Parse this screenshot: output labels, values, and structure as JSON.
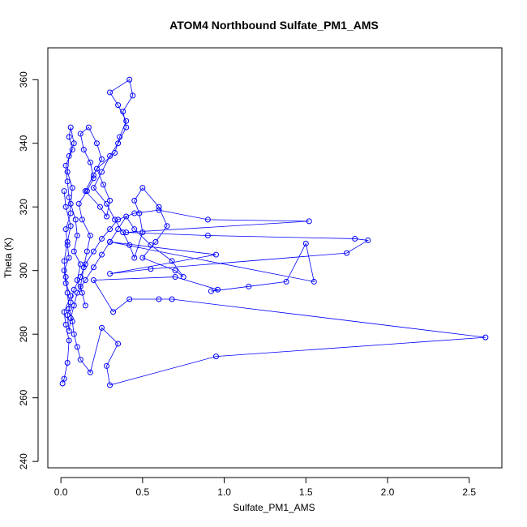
{
  "chart_data": {
    "type": "line",
    "title": "ATOM4 Northbound Sulfate_PM1_AMS",
    "xlabel": "Sulfate_PM1_AMS",
    "ylabel": "Theta (K)",
    "xlim": [
      -0.08,
      2.7
    ],
    "ylim": [
      238,
      370
    ],
    "xticks": [
      0.0,
      0.5,
      1.0,
      1.5,
      2.0,
      2.5
    ],
    "xtick_labels": [
      "0.0",
      "0.5",
      "1.0",
      "1.5",
      "2.0",
      "2.5"
    ],
    "yticks": [
      240,
      260,
      280,
      300,
      320,
      340,
      360
    ],
    "ytick_labels": [
      "240",
      "260",
      "280",
      "300",
      "320",
      "340",
      "360"
    ],
    "grid": false,
    "marker": "open-circle",
    "color": "#0000ff",
    "series": [
      {
        "x": [
          0.01,
          0.02,
          0.04,
          0.05,
          0.03,
          0.02,
          0.06,
          0.03,
          0.02,
          0.05,
          0.04,
          0.03,
          0.06,
          0.05,
          0.04,
          0.03,
          0.07,
          0.05,
          0.06,
          0.08,
          0.05,
          0.04,
          0.07,
          0.06,
          0.09,
          0.1,
          0.08,
          0.12,
          0.1,
          0.13,
          0.15,
          0.12,
          0.14,
          0.16,
          0.18,
          0.13,
          0.11,
          0.16,
          0.2,
          0.18,
          0.14,
          0.12,
          0.17,
          0.22,
          0.25,
          0.2,
          0.15,
          0.24,
          0.28,
          0.3,
          0.26,
          0.22,
          0.33,
          0.36,
          0.4,
          0.35,
          0.3,
          0.42,
          0.44,
          0.38,
          0.4,
          0.35,
          0.3,
          0.25,
          0.2,
          0.28,
          0.33,
          0.38,
          0.42,
          0.45,
          0.5,
          0.48,
          0.45,
          0.5,
          0.6,
          0.65,
          0.58,
          0.5,
          0.7,
          0.75,
          0.68,
          0.55,
          0.45,
          0.4,
          0.35,
          0.3,
          0.25,
          0.2,
          0.15,
          0.1,
          0.08,
          0.06,
          0.05,
          0.04,
          0.06,
          0.08,
          0.12,
          0.15,
          0.2,
          0.25,
          0.3,
          0.35,
          0.45,
          0.6,
          0.9,
          1.52,
          0.4,
          0.9,
          1.8,
          1.88,
          1.75,
          0.55,
          0.3,
          0.95,
          0.3,
          1.55,
          1.5,
          1.38,
          1.15,
          0.92,
          0.96,
          0.7,
          0.2,
          0.32,
          0.42,
          0.6,
          0.68,
          2.6,
          0.95,
          0.3,
          0.28,
          0.35,
          0.25,
          0.18,
          0.12,
          0.1,
          0.08,
          0.07,
          0.05,
          0.04,
          0.03,
          0.02,
          0.04,
          0.06,
          0.03,
          0.02
        ],
        "y": [
          264.5,
          266.0,
          271.0,
          278.0,
          283.0,
          287.0,
          292.0,
          296.0,
          300.0,
          304.0,
          308.0,
          313.0,
          318.0,
          323.0,
          328.0,
          333.0,
          338.0,
          342.0,
          345.0,
          340.0,
          336.0,
          331.0,
          326.0,
          321.0,
          316.0,
          311.0,
          306.0,
          302.0,
          297.0,
          293.0,
          289.0,
          295.0,
          301.0,
          306.0,
          311.0,
          316.0,
          321.0,
          325.0,
          329.0,
          334.0,
          338.0,
          343.0,
          345.0,
          340.0,
          335.0,
          330.0,
          325.0,
          320.0,
          317.0,
          322.0,
          327.0,
          332.0,
          337.0,
          342.0,
          347.0,
          352.0,
          356.0,
          360.0,
          355.0,
          350.0,
          345.0,
          340.0,
          336.0,
          331.0,
          326.0,
          321.0,
          316.0,
          312.0,
          308.0,
          304.0,
          312.0,
          318.0,
          322.0,
          326.0,
          320.0,
          314.0,
          309.0,
          304.0,
          300.0,
          298.0,
          303.0,
          308.0,
          313.0,
          317.0,
          313.0,
          309.0,
          305.0,
          301.0,
          297.0,
          293.0,
          289.0,
          285.0,
          281.0,
          286.0,
          290.0,
          294.0,
          298.0,
          302.0,
          306.0,
          310.0,
          313.0,
          316.0,
          318.0,
          319.0,
          316.0,
          315.5,
          312.0,
          311.0,
          310.0,
          309.5,
          305.5,
          300.5,
          299.0,
          305.0,
          309.0,
          296.5,
          308.5,
          296.5,
          295.0,
          293.5,
          294.0,
          298.0,
          297.0,
          287.0,
          291.0,
          291.0,
          291.0,
          279.0,
          273.0,
          264.0,
          270.0,
          277.0,
          282.0,
          268.0,
          272.0,
          276.0,
          280.0,
          284.0,
          288.0,
          293.0,
          298.0,
          303.0,
          309.0,
          314.0,
          320.0,
          325.0
        ]
      }
    ]
  }
}
